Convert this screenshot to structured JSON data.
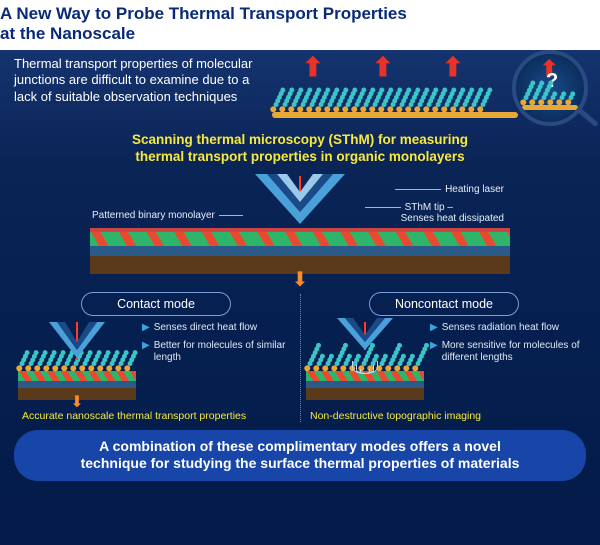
{
  "colors": {
    "bg_top": "#1a3a7a",
    "bg_bottom": "#041a48",
    "title_text": "#0a2a78",
    "white": "#ffffff",
    "yellow": "#f7e93e",
    "laser": "#ff3a2a",
    "arrow_orange": "#ff8a2a",
    "molecule_teal": "#3ac5c8",
    "molecule_base": "#e8a838",
    "label_text": "#e8eef8",
    "pill_border": "#7aa0d8",
    "bullet_icon": "#3aa5e0",
    "conclusion_bg": "#1846a8",
    "substrate_brown": "#5a3a1a",
    "substrate_blue": "#2a5a88",
    "stripe_green": "#2fb56a",
    "stripe_red": "#e8492f",
    "probe_body": "#4aa0d8",
    "probe_inner": "#1a4a88"
  },
  "title": {
    "line1": "A New Way to Probe Thermal Transport Properties",
    "line2": "at the Nanoscale",
    "fontsize": 17
  },
  "intro": {
    "text": "Thermal transport properties of molecular junctions are difficult to examine due to a lack of suitable observation techniques",
    "fontsize": 13,
    "arrows_count": 3,
    "molecule_groups": 4,
    "question_mark": "?"
  },
  "subtitle": {
    "line1": "Scanning thermal microscopy (SThM) for measuring",
    "line2": "thermal transport properties in organic monolayers",
    "fontsize": 13.5
  },
  "main_diagram": {
    "labels": {
      "left": "Patterned binary monolayer",
      "right_top": "Heating laser",
      "right_mid_1": "SThM tip –",
      "right_mid_2": "Senses heat dissipated"
    },
    "label_fontsize": 10,
    "layers": [
      "monolayer_stripes",
      "blue_substrate",
      "brown_substrate"
    ]
  },
  "modes": {
    "left": {
      "pill": "Contact mode",
      "bullets": [
        "Senses direct heat flow",
        "Better for molecules of similar length"
      ],
      "caption": "Accurate nanoscale thermal transport properties",
      "molecule_style": "similar_length"
    },
    "right": {
      "pill": "Noncontact mode",
      "bullets": [
        "Senses radiation heat flow",
        "More sensitive for molecules of different lengths"
      ],
      "caption": "Non-destructive topographic imaging",
      "molecule_style": "different_length",
      "shows_radiation_waves": true
    },
    "pill_fontsize": 12.5,
    "bullet_fontsize": 10,
    "caption_fontsize": 10.5
  },
  "conclusion": {
    "line1": "A combination of these complimentary modes offers a novel",
    "line2": "technique for studying the surface thermal properties of materials",
    "fontsize": 14
  }
}
